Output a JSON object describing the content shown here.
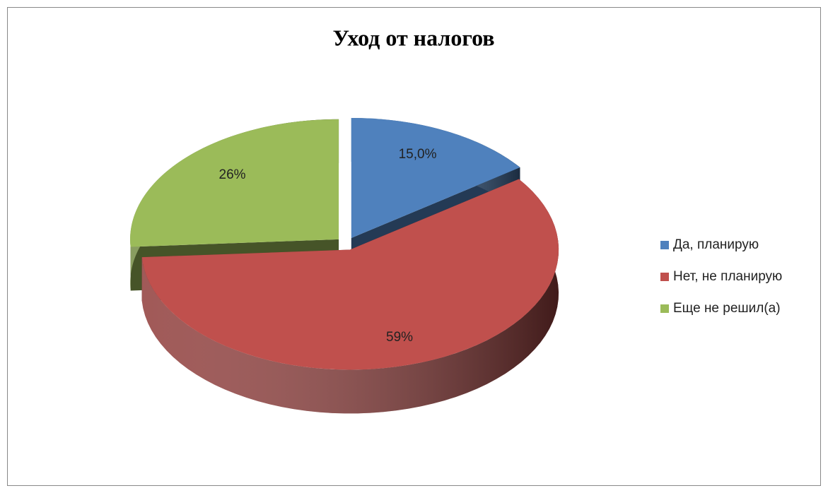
{
  "chart_data": {
    "type": "pie",
    "title": "Уход от налогов",
    "categories": [
      "Да, планирую",
      "Нет, не планирую",
      "Еще не решил(а)"
    ],
    "values": [
      15,
      59,
      26
    ],
    "value_labels": [
      "15,0%",
      "59%",
      "26%"
    ],
    "colors": [
      "#4f81bd",
      "#c0504d",
      "#9bbb59"
    ],
    "legend": "right"
  }
}
